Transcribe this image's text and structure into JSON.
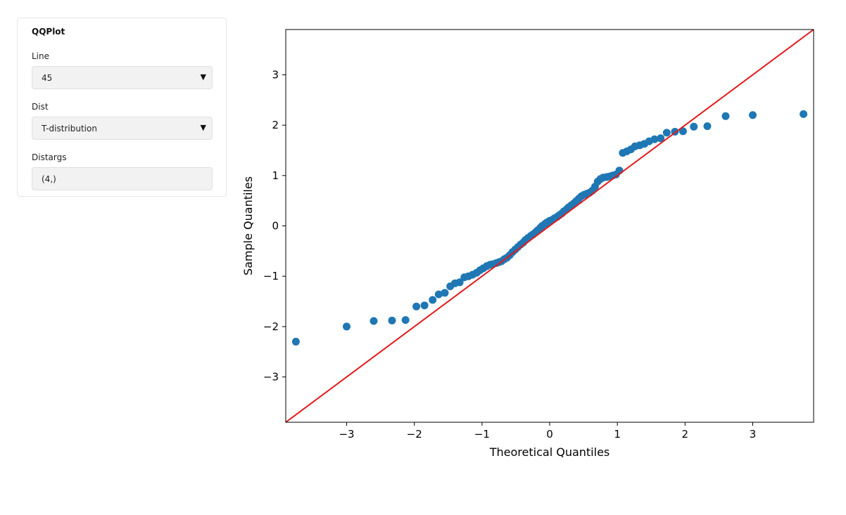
{
  "panel": {
    "title": "QQPlot",
    "line": {
      "label": "Line",
      "value": "45"
    },
    "dist": {
      "label": "Dist",
      "value": "T-distribution"
    },
    "distargs": {
      "label": "Distargs",
      "value": "(4,)"
    }
  },
  "chart_data": {
    "type": "scatter",
    "title": "",
    "xlabel": "Theoretical Quantiles",
    "ylabel": "Sample Quantiles",
    "xlim": [
      -3.9,
      3.9
    ],
    "ylim": [
      -3.9,
      3.9
    ],
    "xticks": [
      -3,
      -2,
      -1,
      0,
      1,
      2,
      3
    ],
    "yticks": [
      -3,
      -2,
      -1,
      0,
      1,
      2,
      3
    ],
    "grid": false,
    "point_color": "#1f77b4",
    "reference_line": {
      "type": "45-degree",
      "color": "#e41a1c",
      "from": [
        -3.9,
        -3.9
      ],
      "to": [
        3.9,
        3.9
      ]
    },
    "points": {
      "x": [
        -3.75,
        -3.0,
        -2.6,
        -2.33,
        -2.13,
        -1.97,
        -1.85,
        -1.73,
        -1.64,
        -1.55,
        -1.47,
        -1.4,
        -1.33,
        -1.26,
        -1.2,
        -1.14,
        -1.08,
        -1.03,
        -0.98,
        -0.93,
        -0.88,
        -0.84,
        -0.79,
        -0.75,
        -0.71,
        -0.67,
        -0.63,
        -0.59,
        -0.55,
        -0.51,
        -0.47,
        -0.43,
        -0.39,
        -0.36,
        -0.32,
        -0.28,
        -0.25,
        -0.21,
        -0.18,
        -0.14,
        -0.11,
        -0.07,
        -0.04,
        0.0,
        0.04,
        0.07,
        0.11,
        0.14,
        0.18,
        0.21,
        0.25,
        0.28,
        0.32,
        0.36,
        0.39,
        0.43,
        0.47,
        0.51,
        0.55,
        0.59,
        0.63,
        0.67,
        0.71,
        0.75,
        0.79,
        0.84,
        0.88,
        0.93,
        0.98,
        1.03,
        1.08,
        1.14,
        1.2,
        1.26,
        1.33,
        1.4,
        1.47,
        1.55,
        1.64,
        1.73,
        1.85,
        1.97,
        2.13,
        2.33,
        2.6,
        3.0,
        3.75
      ],
      "y": [
        -2.3,
        -2.0,
        -1.89,
        -1.88,
        -1.87,
        -1.6,
        -1.58,
        -1.47,
        -1.36,
        -1.33,
        -1.2,
        -1.14,
        -1.12,
        -1.02,
        -1.0,
        -0.97,
        -0.93,
        -0.88,
        -0.84,
        -0.8,
        -0.77,
        -0.76,
        -0.74,
        -0.72,
        -0.7,
        -0.66,
        -0.63,
        -0.58,
        -0.52,
        -0.47,
        -0.42,
        -0.37,
        -0.33,
        -0.28,
        -0.24,
        -0.2,
        -0.17,
        -0.13,
        -0.09,
        -0.04,
        0.0,
        0.04,
        0.07,
        0.1,
        0.12,
        0.15,
        0.18,
        0.21,
        0.25,
        0.29,
        0.33,
        0.37,
        0.41,
        0.45,
        0.49,
        0.54,
        0.59,
        0.62,
        0.64,
        0.66,
        0.7,
        0.78,
        0.88,
        0.93,
        0.96,
        0.97,
        0.98,
        1.0,
        1.02,
        1.1,
        1.45,
        1.48,
        1.52,
        1.58,
        1.6,
        1.63,
        1.68,
        1.72,
        1.74,
        1.85,
        1.87,
        1.88,
        1.97,
        1.98,
        2.18,
        2.2,
        2.22
      ]
    }
  }
}
